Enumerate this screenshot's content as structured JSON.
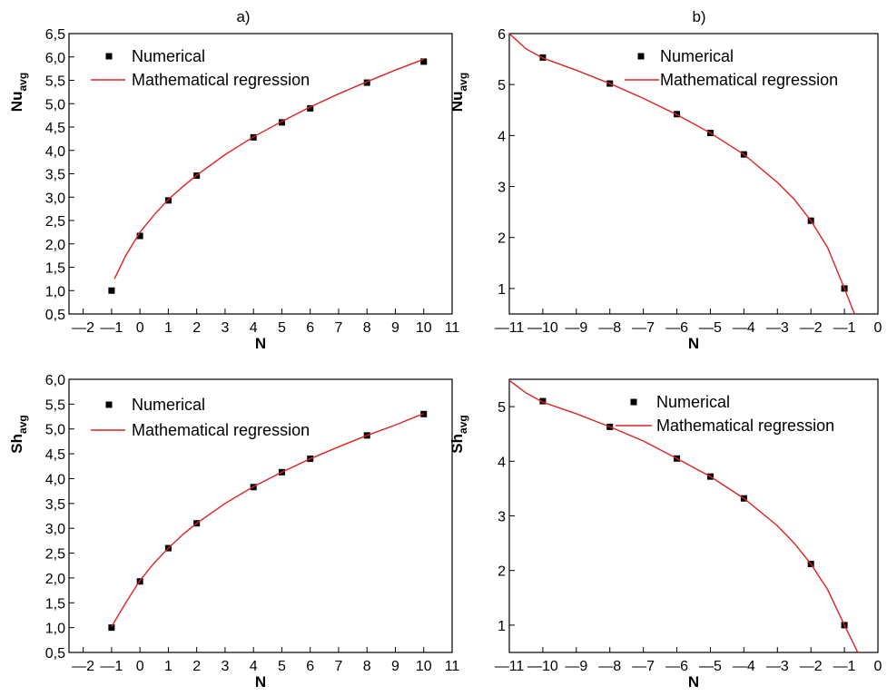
{
  "chart_data": [
    {
      "panel_label": "a)",
      "type": "line",
      "xlabel": "N",
      "ylabel": "Nu",
      "ylabel_sub": "avg",
      "xlim": [
        -2.5,
        11
      ],
      "ylim": [
        0.5,
        6.5
      ],
      "xticks": [
        -2,
        -1,
        0,
        1,
        2,
        3,
        4,
        5,
        6,
        7,
        8,
        9,
        10,
        11
      ],
      "xtick_labels": [
        "—2",
        "—1",
        "0",
        "1",
        "2",
        "3",
        "4",
        "5",
        "6",
        "7",
        "8",
        "9",
        "10",
        "11"
      ],
      "yticks": [
        0.5,
        1.0,
        1.5,
        2.0,
        2.5,
        3.0,
        3.5,
        4.0,
        4.5,
        5.0,
        5.5,
        6.0,
        6.5
      ],
      "ytick_labels": [
        "0,5",
        "1,0",
        "1,5",
        "2,0",
        "2,5",
        "3,0",
        "3,5",
        "4,0",
        "4,5",
        "5,0",
        "5,5",
        "6,0",
        "6,5"
      ],
      "legend": {
        "placement": "top-left"
      },
      "series": [
        {
          "name": "Numerical",
          "kind": "scatter",
          "marker": "square",
          "color": "#000000",
          "x": [
            -1,
            0,
            1,
            2,
            4,
            5,
            6,
            8,
            10
          ],
          "y": [
            1.0,
            2.17,
            2.93,
            3.46,
            4.28,
            4.6,
            4.9,
            5.45,
            5.9
          ]
        },
        {
          "name": "Mathematical regression",
          "kind": "line",
          "color": "#dd2222",
          "x": [
            -0.9,
            -0.5,
            0,
            0.5,
            1,
            1.5,
            2,
            3,
            4,
            5,
            6,
            7,
            8,
            9,
            10
          ],
          "y": [
            1.25,
            1.75,
            2.25,
            2.62,
            2.95,
            3.22,
            3.47,
            3.91,
            4.29,
            4.62,
            4.93,
            5.21,
            5.47,
            5.72,
            5.95
          ]
        }
      ]
    },
    {
      "panel_label": "b)",
      "type": "line",
      "xlabel": "N",
      "ylabel": "Nu",
      "ylabel_sub": "avg",
      "xlim": [
        -11,
        0
      ],
      "ylim": [
        0.5,
        6
      ],
      "xticks": [
        -11,
        -10,
        -9,
        -8,
        -7,
        -6,
        -5,
        -4,
        -3,
        -2,
        -1,
        0
      ],
      "xtick_labels": [
        "—11",
        "—10",
        "—9",
        "—8",
        "—7",
        "—6",
        "—5",
        "—4",
        "—3",
        "—2",
        "—1",
        "0"
      ],
      "yticks": [
        1,
        2,
        3,
        4,
        5,
        6
      ],
      "ytick_labels": [
        "1",
        "2",
        "3",
        "4",
        "5",
        "6"
      ],
      "legend": {
        "placement": "top-right"
      },
      "series": [
        {
          "name": "Numerical",
          "kind": "scatter",
          "marker": "square",
          "color": "#000000",
          "x": [
            -10,
            -8,
            -6,
            -5,
            -4,
            -2,
            -1
          ],
          "y": [
            5.53,
            5.02,
            4.42,
            4.05,
            3.63,
            2.33,
            1.0
          ]
        },
        {
          "name": "Mathematical regression",
          "kind": "line",
          "color": "#dd2222",
          "x": [
            -11,
            -10.5,
            -10,
            -9,
            -8,
            -7,
            -6,
            -5,
            -4,
            -3,
            -2.5,
            -2,
            -1.5,
            -1,
            -0.7
          ],
          "y": [
            6.0,
            5.7,
            5.52,
            5.28,
            5.02,
            4.73,
            4.41,
            4.05,
            3.63,
            3.08,
            2.75,
            2.33,
            1.8,
            1.0,
            0.5
          ]
        }
      ]
    },
    {
      "panel_label": "",
      "type": "line",
      "xlabel": "N",
      "ylabel": "Sh",
      "ylabel_sub": "avg",
      "xlim": [
        -2.5,
        11
      ],
      "ylim": [
        0.5,
        6.0
      ],
      "xticks": [
        -2,
        -1,
        0,
        1,
        2,
        3,
        4,
        5,
        6,
        7,
        8,
        9,
        10,
        11
      ],
      "xtick_labels": [
        "—2",
        "—1",
        "0",
        "1",
        "2",
        "3",
        "4",
        "5",
        "6",
        "7",
        "8",
        "9",
        "10",
        "11"
      ],
      "yticks": [
        0.5,
        1.0,
        1.5,
        2.0,
        2.5,
        3.0,
        3.5,
        4.0,
        4.5,
        5.0,
        5.5,
        6.0
      ],
      "ytick_labels": [
        "0,5",
        "1,0",
        "1,5",
        "2,0",
        "2,5",
        "3,0",
        "3,5",
        "4,0",
        "4,5",
        "5,0",
        "5,5",
        "6,0"
      ],
      "legend": {
        "placement": "top-left"
      },
      "series": [
        {
          "name": "Numerical",
          "kind": "scatter",
          "marker": "square",
          "color": "#000000",
          "x": [
            -1,
            0,
            1,
            2,
            4,
            5,
            6,
            8,
            10
          ],
          "y": [
            1.0,
            1.93,
            2.6,
            3.1,
            3.83,
            4.13,
            4.4,
            4.87,
            5.3
          ]
        },
        {
          "name": "Mathematical regression",
          "kind": "line",
          "color": "#dd2222",
          "x": [
            -1,
            -0.5,
            0,
            0.5,
            1,
            1.5,
            2,
            3,
            4,
            5,
            6,
            7,
            8,
            9,
            10
          ],
          "y": [
            1.02,
            1.5,
            1.95,
            2.3,
            2.6,
            2.87,
            3.1,
            3.5,
            3.84,
            4.13,
            4.4,
            4.64,
            4.87,
            5.08,
            5.31
          ]
        }
      ]
    },
    {
      "panel_label": "",
      "type": "line",
      "xlabel": "N",
      "ylabel": "Sh",
      "ylabel_sub": "avg",
      "xlim": [
        -11,
        0
      ],
      "ylim": [
        0.5,
        5.5
      ],
      "xticks": [
        -11,
        -10,
        -9,
        -8,
        -7,
        -6,
        -5,
        -4,
        -3,
        -2,
        -1,
        0
      ],
      "xtick_labels": [
        "—11",
        "—10",
        "—9",
        "—8",
        "—7",
        "—6",
        "—5",
        "—4",
        "—3",
        "—2",
        "—1",
        "0"
      ],
      "yticks": [
        1,
        2,
        3,
        4,
        5
      ],
      "ytick_labels": [
        "1",
        "2",
        "3",
        "4",
        "5"
      ],
      "legend": {
        "placement": "top-right"
      },
      "series": [
        {
          "name": "Numerical",
          "kind": "scatter",
          "marker": "square",
          "color": "#000000",
          "x": [
            -10,
            -8,
            -6,
            -5,
            -4,
            -2,
            -1
          ],
          "y": [
            5.1,
            4.63,
            4.05,
            3.72,
            3.32,
            2.12,
            1.0
          ]
        },
        {
          "name": "Mathematical regression",
          "kind": "line",
          "color": "#dd2222",
          "x": [
            -11,
            -10.5,
            -10,
            -9,
            -8,
            -7,
            -6,
            -5,
            -4,
            -3,
            -2.5,
            -2,
            -1.5,
            -1,
            -0.6
          ],
          "y": [
            5.48,
            5.25,
            5.08,
            4.87,
            4.63,
            4.37,
            4.05,
            3.72,
            3.32,
            2.82,
            2.5,
            2.12,
            1.65,
            1.0,
            0.5
          ]
        }
      ]
    }
  ]
}
